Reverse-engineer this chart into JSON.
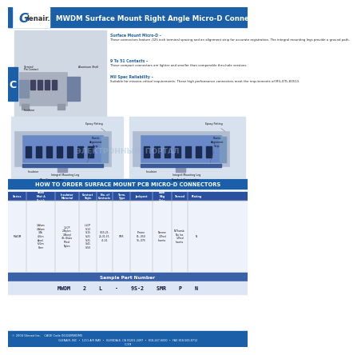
{
  "title": "MWDM Surface Mount Right Angle Micro-D Connectors",
  "logo_bg": "#1a5fa8",
  "header_bg": "#1a5fa8",
  "header_text_color": "#ffffff",
  "side_tab_color": "#1a5fa8",
  "side_tab_text": "C",
  "body_bg": "#ffffff",
  "section_bar_bg": "#1a5fa8",
  "section_bar_text": "HOW TO ORDER SURFACE MOUNT PCB MICRO-D CONNECTORS",
  "feature_title1": "Surface Mount Micro-D",
  "feature_body1": "These connectors feature .025 inch terminal spacing and an alignment strip for accurate registration. The integral mounting legs provide a ground path.",
  "feature_title2": "9 To 51 Contacts",
  "feature_body2": "These compact connectors are lighter and smaller than comparable thru-hole versions.",
  "feature_title3": "Mil Spec Reliability",
  "feature_body3": "Suitable for mission-critical requirements. These high performance connectors meet the requirements of MIL-DTL-83513.",
  "footer_text": "2004 Glenair Inc.    CAGE Code 06324MWDM5",
  "footer_text2": "GLENAIR, INC  •  1211 AIR WAY  •  GLENDALE, CA 91201-2497  •  818-247-6000  •  FAX 818-500-8712",
  "footer_text3": "C-39",
  "part_number_label": "Sample Part Number",
  "part_number": "MWDM    2    L    -    9S-2    SMR    P    N",
  "watermark": "ЭЛЕКТРОННЫЙ  ПОРТАЛ",
  "label_color1": "#2060a0"
}
